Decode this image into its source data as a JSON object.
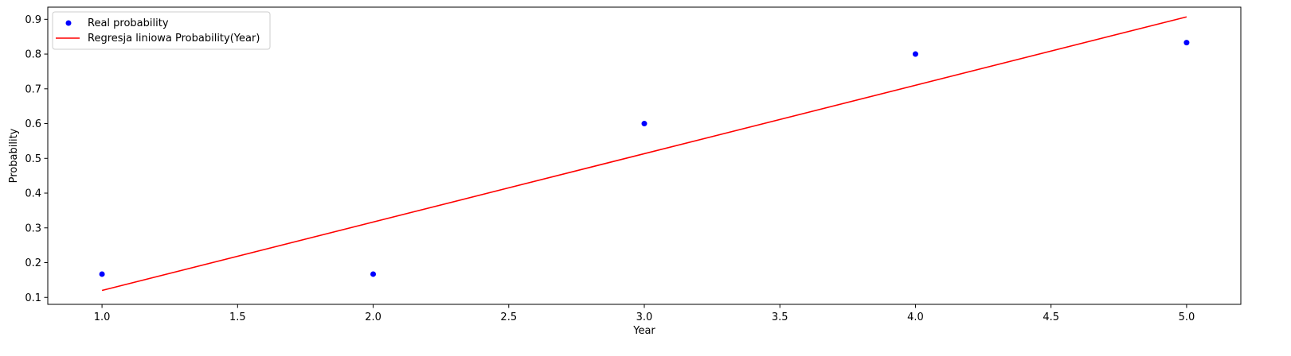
{
  "chart_data": {
    "type": "scatter",
    "xlabel": "Year",
    "ylabel": "Probability",
    "xlim": [
      0.8,
      5.2
    ],
    "ylim": [
      0.08,
      0.935
    ],
    "xticks": [
      1.0,
      1.5,
      2.0,
      2.5,
      3.0,
      3.5,
      4.0,
      4.5,
      5.0
    ],
    "xtick_labels": [
      "1.0",
      "1.5",
      "2.0",
      "2.5",
      "3.0",
      "3.5",
      "4.0",
      "4.5",
      "5.0"
    ],
    "yticks": [
      0.1,
      0.2,
      0.3,
      0.4,
      0.5,
      0.6,
      0.7,
      0.8,
      0.9
    ],
    "ytick_labels": [
      "0.1",
      "0.2",
      "0.3",
      "0.4",
      "0.5",
      "0.6",
      "0.7",
      "0.8",
      "0.9"
    ],
    "grid": false,
    "legend_position": "top-left",
    "series": [
      {
        "name": "Real probability",
        "kind": "scatter",
        "color": "#0000ff",
        "x": [
          1,
          2,
          3,
          4,
          5
        ],
        "y": [
          0.167,
          0.167,
          0.6,
          0.8,
          0.833
        ]
      },
      {
        "name": "Regresja liniowa Probability(Year)",
        "kind": "line",
        "color": "#ff0000",
        "x": [
          1,
          5
        ],
        "y": [
          0.12,
          0.907
        ]
      }
    ]
  }
}
